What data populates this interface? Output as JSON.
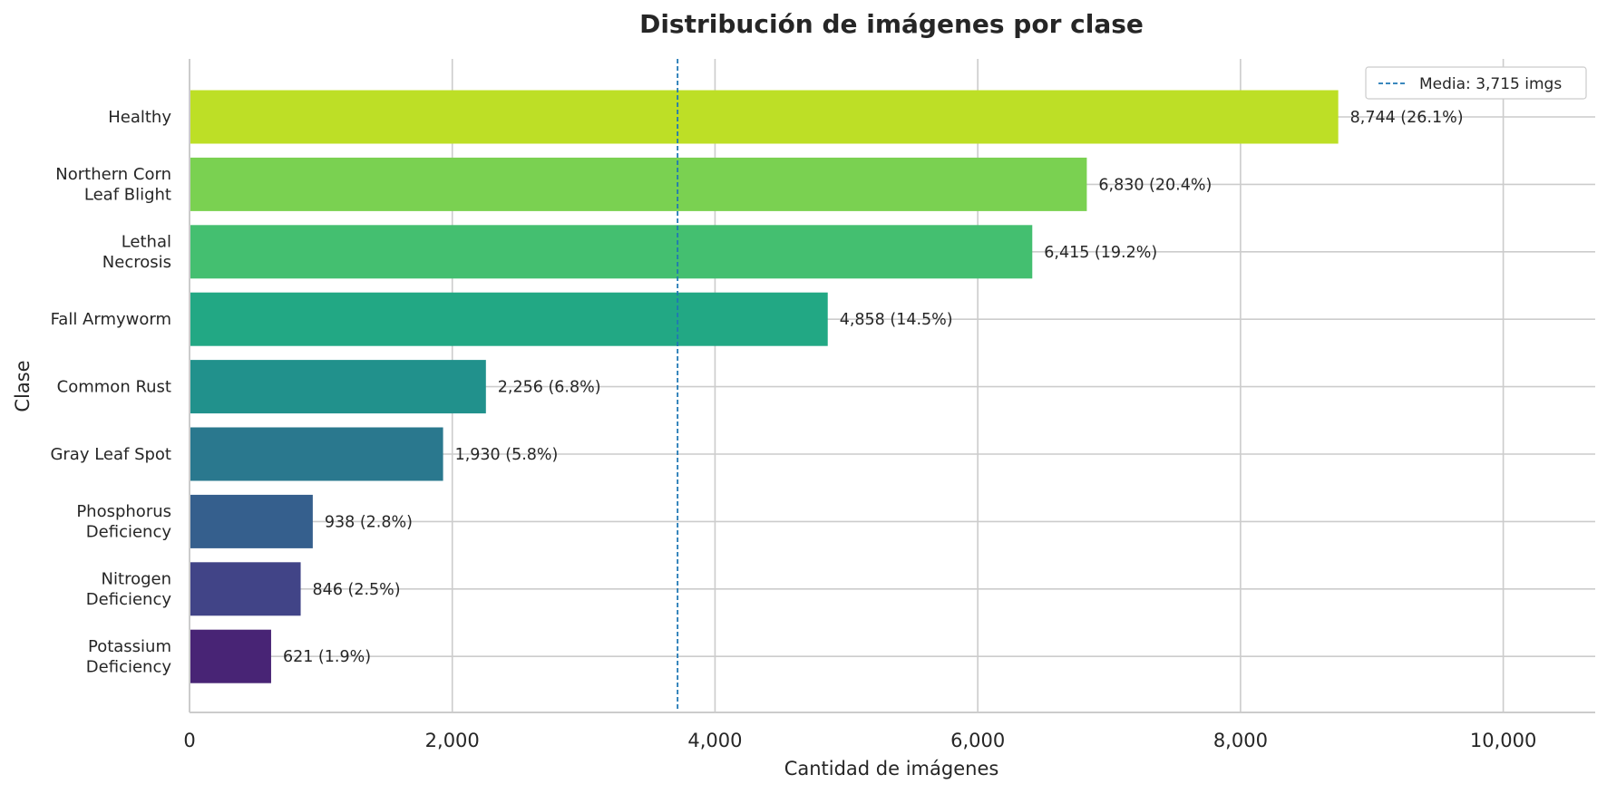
{
  "chart_data": {
    "type": "bar",
    "orientation": "horizontal",
    "title": "Distribución de imágenes por clase",
    "xlabel": "Cantidad de imágenes",
    "ylabel": "Clase",
    "xlim": [
      0,
      10700
    ],
    "xticks": [
      0,
      2000,
      4000,
      6000,
      8000,
      10000
    ],
    "xtick_labels": [
      "0",
      "2,000",
      "4,000",
      "6,000",
      "8,000",
      "10,000"
    ],
    "grid": true,
    "legend_position": "top-right",
    "categories": [
      [
        "Healthy"
      ],
      [
        "Northern Corn",
        "Leaf Blight"
      ],
      [
        "Lethal",
        "Necrosis"
      ],
      [
        "Fall Armyworm"
      ],
      [
        "Common Rust"
      ],
      [
        "Gray Leaf Spot"
      ],
      [
        "Phosphorus",
        "Deficiency"
      ],
      [
        "Nitrogen",
        "Deficiency"
      ],
      [
        "Potassium",
        "Deficiency"
      ]
    ],
    "values": [
      8744,
      6830,
      6415,
      4858,
      2256,
      1930,
      938,
      846,
      621
    ],
    "bar_labels": [
      "8,744  (26.1%)",
      "6,830  (20.4%)",
      "6,415  (19.2%)",
      "4,858  (14.5%)",
      "2,256  (6.8%)",
      "1,930  (5.8%)",
      "938  (2.8%)",
      "846  (2.5%)",
      "621  (1.9%)"
    ],
    "colors": [
      "#bddf26",
      "#7ad151",
      "#44bf70",
      "#22a884",
      "#21918c",
      "#2a788e",
      "#355f8d",
      "#414487",
      "#482475"
    ],
    "reference_line": {
      "value": 3715,
      "label": "Media: 3,715 imgs",
      "color": "#1f77b4",
      "style": "dashed"
    }
  }
}
